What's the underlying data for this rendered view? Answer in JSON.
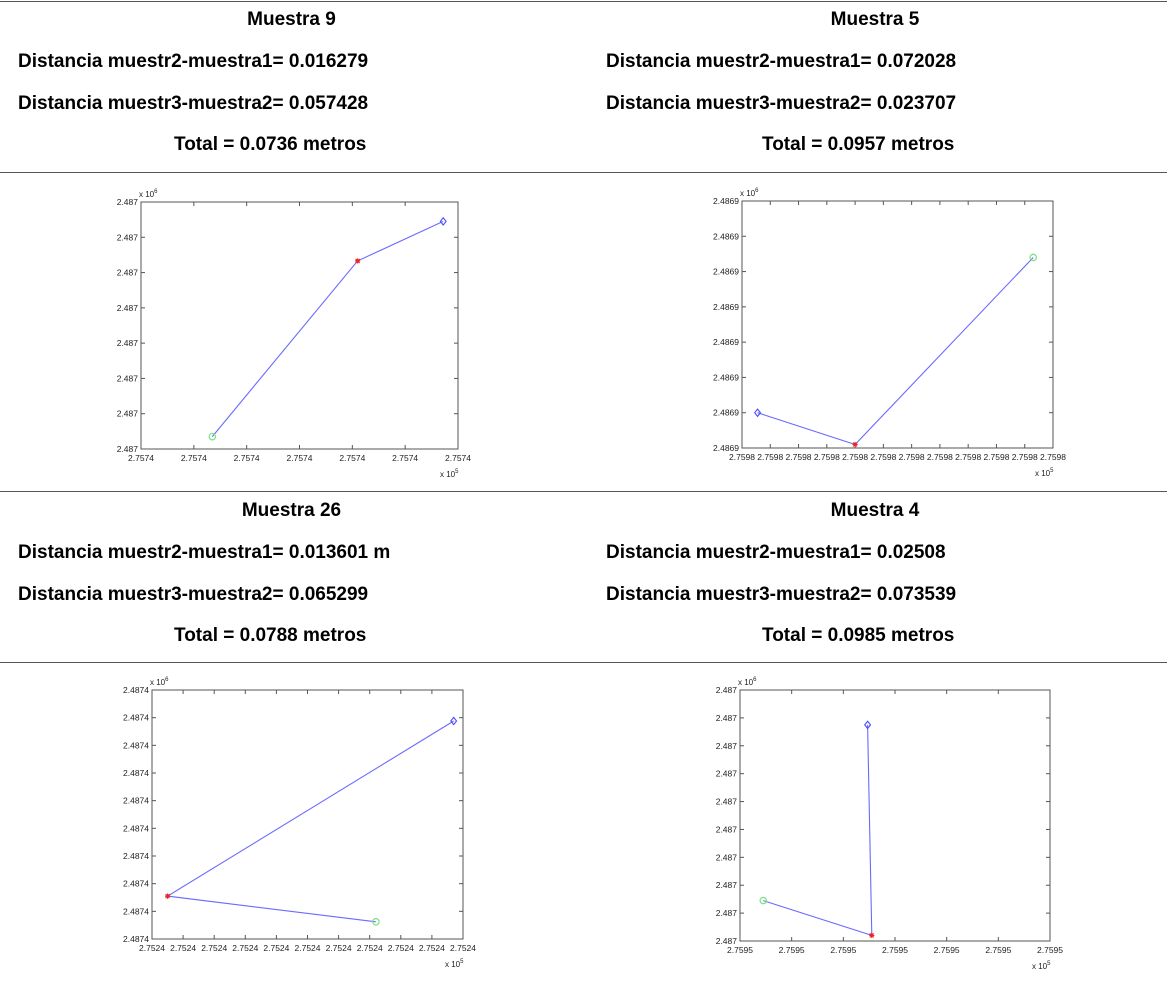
{
  "samples": [
    {
      "title": "Muestra 9",
      "line1": "Distancia muestr2-muestra1= 0.016279",
      "line2": "Distancia muestr3-muestra2= 0.057428",
      "total": "Total = 0.0736 metros"
    },
    {
      "title": "Muestra 5",
      "line1": "Distancia muestr2-muestra1= 0.072028",
      "line2": "Distancia muestr3-muestra2= 0.023707",
      "total": "Total = 0.0957 metros"
    },
    {
      "title": "Muestra 26",
      "line1": "Distancia muestr2-muestra1= 0.013601 m",
      "line2": "Distancia muestr3-muestra2= 0.065299",
      "total": "Total = 0.0788 metros"
    },
    {
      "title": "Muestra 4",
      "line1": "Distancia muestr2-muestra1= 0.02508",
      "line2": "Distancia muestr3-muestra2= 0.073539",
      "total": "Total = 0.0985 metros"
    }
  ],
  "chart_data": [
    {
      "type": "line",
      "title": "",
      "xlabel": "",
      "ylabel": "",
      "x_multiplier": "x 10^5",
      "y_multiplier": "x 10^6",
      "xlim": [
        0,
        6
      ],
      "ylim": [
        0,
        7
      ],
      "x_tick_labels": [
        "2.7574",
        "2.7574",
        "2.7574",
        "2.7574",
        "2.7574",
        "2.7574",
        "2.7574"
      ],
      "y_tick_labels": [
        "2.487",
        "2.487",
        "2.487",
        "2.487",
        "2.487",
        "2.487",
        "2.487",
        "2.487"
      ],
      "series": [
        {
          "x": [
            1.35,
            4.1,
            5.72
          ],
          "y": [
            0.35,
            5.33,
            6.45
          ]
        }
      ],
      "markers": [
        {
          "point": 0,
          "symbol": "o",
          "color": "#7ee07e"
        },
        {
          "point": 1,
          "symbol": "*",
          "color": "#ee2222"
        },
        {
          "point": 2,
          "symbol": "diamond",
          "color": "#4a4aff"
        }
      ],
      "line_color": "#6a6aff",
      "grid": false
    },
    {
      "type": "line",
      "title": "",
      "xlabel": "",
      "ylabel": "",
      "x_multiplier": "x 10^5",
      "y_multiplier": "x 10^6",
      "xlim": [
        0,
        11
      ],
      "ylim": [
        0,
        7
      ],
      "x_tick_labels": [
        "2.7598",
        "2.7598",
        "2.7598",
        "2.7598",
        "2.7598",
        "2.7598",
        "2.7598",
        "2.7598",
        "2.7598",
        "2.7598",
        "2.7598",
        "2.7598"
      ],
      "y_tick_labels": [
        "2.4869",
        "2.4869",
        "2.4869",
        "2.4869",
        "2.4869",
        "2.4869",
        "2.4869",
        "2.4869"
      ],
      "series": [
        {
          "x": [
            0.55,
            4.0,
            10.3
          ],
          "y": [
            1.0,
            0.1,
            5.4
          ]
        }
      ],
      "markers": [
        {
          "point": 0,
          "symbol": "diamond",
          "color": "#4a4aff"
        },
        {
          "point": 1,
          "symbol": "*",
          "color": "#ee2222"
        },
        {
          "point": 2,
          "symbol": "o",
          "color": "#7ee07e"
        }
      ],
      "line_color": "#6a6aff",
      "grid": false
    },
    {
      "type": "line",
      "title": "",
      "xlabel": "",
      "ylabel": "",
      "x_multiplier": "x 10^5",
      "y_multiplier": "x 10^6",
      "xlim": [
        0,
        10
      ],
      "ylim": [
        0,
        9
      ],
      "x_tick_labels": [
        "2.7524",
        "2.7524",
        "2.7524",
        "2.7524",
        "2.7524",
        "2.7524",
        "2.7524",
        "2.7524",
        "2.7524",
        "2.7524",
        "2.7524"
      ],
      "y_tick_labels": [
        "2.4874",
        "2.4874",
        "2.4874",
        "2.4874",
        "2.4874",
        "2.4874",
        "2.4874",
        "2.4874",
        "2.4874",
        "2.4874"
      ],
      "series": [
        {
          "x": [
            9.7,
            0.5,
            7.2
          ],
          "y": [
            7.88,
            1.55,
            0.62
          ]
        }
      ],
      "markers": [
        {
          "point": 0,
          "symbol": "diamond",
          "color": "#4a4aff"
        },
        {
          "point": 1,
          "symbol": "*",
          "color": "#ee2222"
        },
        {
          "point": 2,
          "symbol": "o",
          "color": "#7ee07e"
        }
      ],
      "line_color": "#6a6aff",
      "grid": false
    },
    {
      "type": "line",
      "title": "",
      "xlabel": "",
      "ylabel": "",
      "x_multiplier": "x 10^5",
      "y_multiplier": "x 10^6",
      "xlim": [
        0,
        6
      ],
      "ylim": [
        0,
        9
      ],
      "x_tick_labels": [
        "2.7595",
        "2.7595",
        "2.7595",
        "2.7595",
        "2.7595",
        "2.7595",
        "2.7595"
      ],
      "y_tick_labels": [
        "2.487",
        "2.487",
        "2.487",
        "2.487",
        "2.487",
        "2.487",
        "2.487",
        "2.487",
        "2.487",
        "2.487"
      ],
      "series": [
        {
          "x": [
            2.47,
            2.55,
            0.45
          ],
          "y": [
            7.75,
            0.2,
            1.45
          ]
        }
      ],
      "markers": [
        {
          "point": 0,
          "symbol": "diamond",
          "color": "#4a4aff"
        },
        {
          "point": 1,
          "symbol": "*",
          "color": "#ee2222"
        },
        {
          "point": 2,
          "symbol": "o",
          "color": "#7ee07e"
        }
      ],
      "line_color": "#6a6aff",
      "grid": false
    }
  ]
}
